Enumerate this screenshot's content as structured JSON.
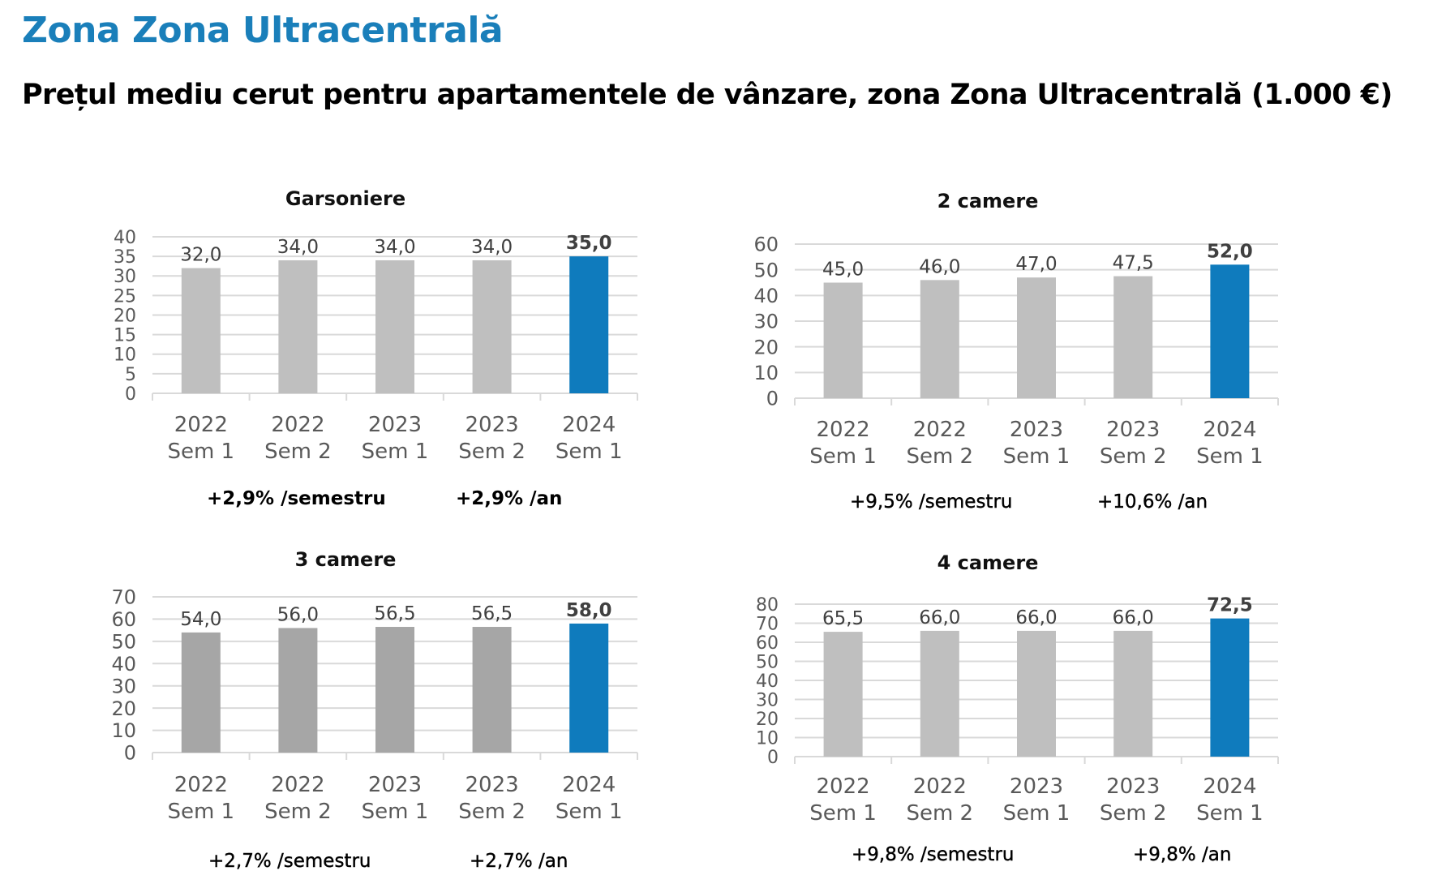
{
  "header": {
    "zone_title": "Zona Zona Ultracentrală",
    "main_title": "Prețul mediu cerut pentru apartamentele de vânzare, zona Zona Ultracentrală (1.000 €)"
  },
  "colors": {
    "accent": "#1a7fba",
    "highlight_bar": "#0f7bbd",
    "grey_bar_light": "#bfbfbf",
    "grey_bar_dark": "#a6a6a6",
    "gridline": "#d9d9d9",
    "axis_text": "#595959",
    "value_text": "#404040"
  },
  "chart_data": [
    {
      "type": "bar",
      "title": "Garsoniere",
      "categories": [
        [
          "2022",
          "Sem 1"
        ],
        [
          "2022",
          "Sem 2"
        ],
        [
          "2023",
          "Sem 1"
        ],
        [
          "2023",
          "Sem 2"
        ],
        [
          "2024",
          "Sem 1"
        ]
      ],
      "values": [
        32.0,
        34.0,
        34.0,
        34.0,
        35.0
      ],
      "value_labels": [
        "32,0",
        "34,0",
        "34,0",
        "34,0",
        "35,0"
      ],
      "highlight_index": 4,
      "ylim": [
        0,
        40
      ],
      "yticks": [
        0,
        5,
        10,
        15,
        20,
        25,
        30,
        35,
        40
      ],
      "grid": true,
      "xlabel": "",
      "ylabel": "",
      "growth_semester": "+2,9% /semestru",
      "growth_year": "+2,9% /an"
    },
    {
      "type": "bar",
      "title": "2 camere",
      "categories": [
        [
          "2022",
          "Sem 1"
        ],
        [
          "2022",
          "Sem 2"
        ],
        [
          "2023",
          "Sem 1"
        ],
        [
          "2023",
          "Sem 2"
        ],
        [
          "2024",
          "Sem 1"
        ]
      ],
      "values": [
        45.0,
        46.0,
        47.0,
        47.5,
        52.0
      ],
      "value_labels": [
        "45,0",
        "46,0",
        "47,0",
        "47,5",
        "52,0"
      ],
      "highlight_index": 4,
      "ylim": [
        0,
        60
      ],
      "yticks": [
        0,
        10,
        20,
        30,
        40,
        50,
        60
      ],
      "grid": true,
      "xlabel": "",
      "ylabel": "",
      "growth_semester": "+9,5% /semestru",
      "growth_year": "+10,6% /an"
    },
    {
      "type": "bar",
      "title": "3 camere",
      "categories": [
        [
          "2022",
          "Sem 1"
        ],
        [
          "2022",
          "Sem 2"
        ],
        [
          "2023",
          "Sem 1"
        ],
        [
          "2023",
          "Sem 2"
        ],
        [
          "2024",
          "Sem 1"
        ]
      ],
      "values": [
        54.0,
        56.0,
        56.5,
        56.5,
        58.0
      ],
      "value_labels": [
        "54,0",
        "56,0",
        "56,5",
        "56,5",
        "58,0"
      ],
      "highlight_index": 4,
      "ylim": [
        0,
        70
      ],
      "yticks": [
        0,
        10,
        20,
        30,
        40,
        50,
        60,
        70
      ],
      "grid": true,
      "xlabel": "",
      "ylabel": "",
      "growth_semester": "+2,7% /semestru",
      "growth_year": "+2,7% /an"
    },
    {
      "type": "bar",
      "title": "4 camere",
      "categories": [
        [
          "2022",
          "Sem 1"
        ],
        [
          "2022",
          "Sem 2"
        ],
        [
          "2023",
          "Sem 1"
        ],
        [
          "2023",
          "Sem 2"
        ],
        [
          "2024",
          "Sem 1"
        ]
      ],
      "values": [
        65.5,
        66.0,
        66.0,
        66.0,
        72.5
      ],
      "value_labels": [
        "65,5",
        "66,0",
        "66,0",
        "66,0",
        "72,5"
      ],
      "highlight_index": 4,
      "ylim": [
        0,
        80
      ],
      "yticks": [
        0,
        10,
        20,
        30,
        40,
        50,
        60,
        70,
        80
      ],
      "grid": true,
      "xlabel": "",
      "ylabel": "",
      "growth_semester": "+9,8% /semestru",
      "growth_year": "+9,8% /an"
    }
  ]
}
